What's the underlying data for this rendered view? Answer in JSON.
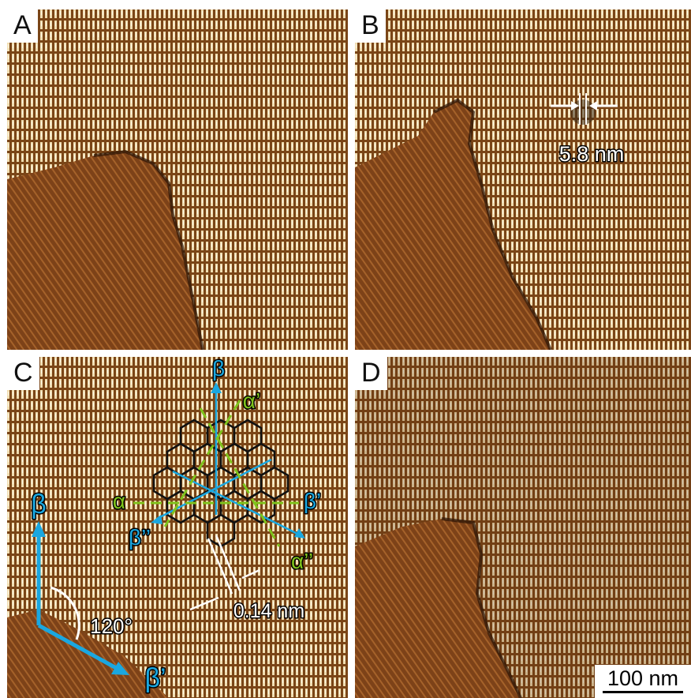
{
  "figure": {
    "panels": [
      {
        "id": "A",
        "label": "A"
      },
      {
        "id": "B",
        "label": "B",
        "annotation": "5.8 nm"
      },
      {
        "id": "C",
        "label": "C",
        "directions": {
          "beta": "β",
          "beta_prime": "β’",
          "beta_double": "β’’",
          "alpha": "α",
          "alpha_prime": "α’",
          "alpha_double": "α’’"
        },
        "angle": "120°",
        "spacing": "0.14 nm"
      },
      {
        "id": "D",
        "label": "D"
      }
    ],
    "scale_bar": "100 nm",
    "colors": {
      "stripe_light": "#f3e2b8",
      "stripe_dark": "#6b3a12",
      "domain_brown": "#8a4a1c",
      "cyan": "#1aa7e0",
      "green": "#7fc31c"
    }
  }
}
